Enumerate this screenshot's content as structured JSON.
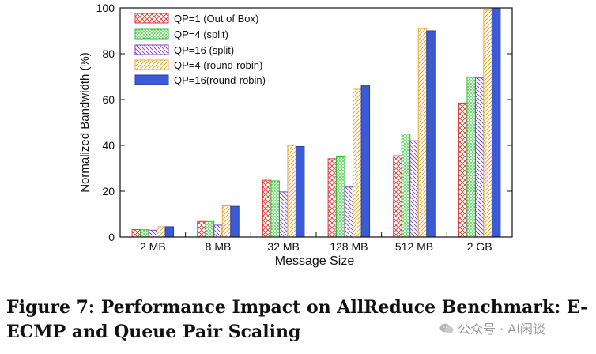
{
  "caption": {
    "line1": "Figure 7: Performance Impact on AllReduce Benchmark: E-",
    "line2": "ECMP and Queue Pair Scaling"
  },
  "watermark": {
    "text": "公众号 · AI闲谈",
    "icon": "wechat-icon"
  },
  "chart_data": {
    "type": "bar",
    "xlabel": "Message Size",
    "ylabel": "Normalized Bandwidth (%)",
    "ylim": [
      0,
      100
    ],
    "yticks": [
      "0",
      "20",
      "40",
      "60",
      "80",
      "100"
    ],
    "categories": [
      "2 MB",
      "8 MB",
      "32 MB",
      "128 MB",
      "512 MB",
      "2 GB"
    ],
    "legend_position": "top-left",
    "grid": false,
    "series": [
      {
        "name": "QP=1 (Out of Box)",
        "values": [
          3.3,
          6.8,
          24.8,
          34.2,
          35.5,
          58.5
        ],
        "color": "#e03a3a",
        "pattern": "crosshatch"
      },
      {
        "name": "QP=4 (split)",
        "values": [
          3.2,
          6.8,
          24.5,
          35.0,
          45.0,
          69.7
        ],
        "color": "#2fbf2f",
        "pattern": "crosshatch-dense"
      },
      {
        "name": "QP=16 (split)",
        "values": [
          3.0,
          5.2,
          19.7,
          21.8,
          42.0,
          69.4
        ],
        "color": "#7b3fc4",
        "pattern": "diagonal-back"
      },
      {
        "name": "QP=4 (round-robin)",
        "values": [
          4.5,
          13.6,
          40.0,
          64.5,
          91.0,
          99.0
        ],
        "color": "#e6a833",
        "pattern": "diagonal-forward"
      },
      {
        "name": "QP=16(round-robin)",
        "values": [
          4.5,
          13.4,
          39.5,
          66.0,
          90.0,
          100.0
        ],
        "color": "#3b5ad6",
        "pattern": "solid"
      }
    ]
  }
}
